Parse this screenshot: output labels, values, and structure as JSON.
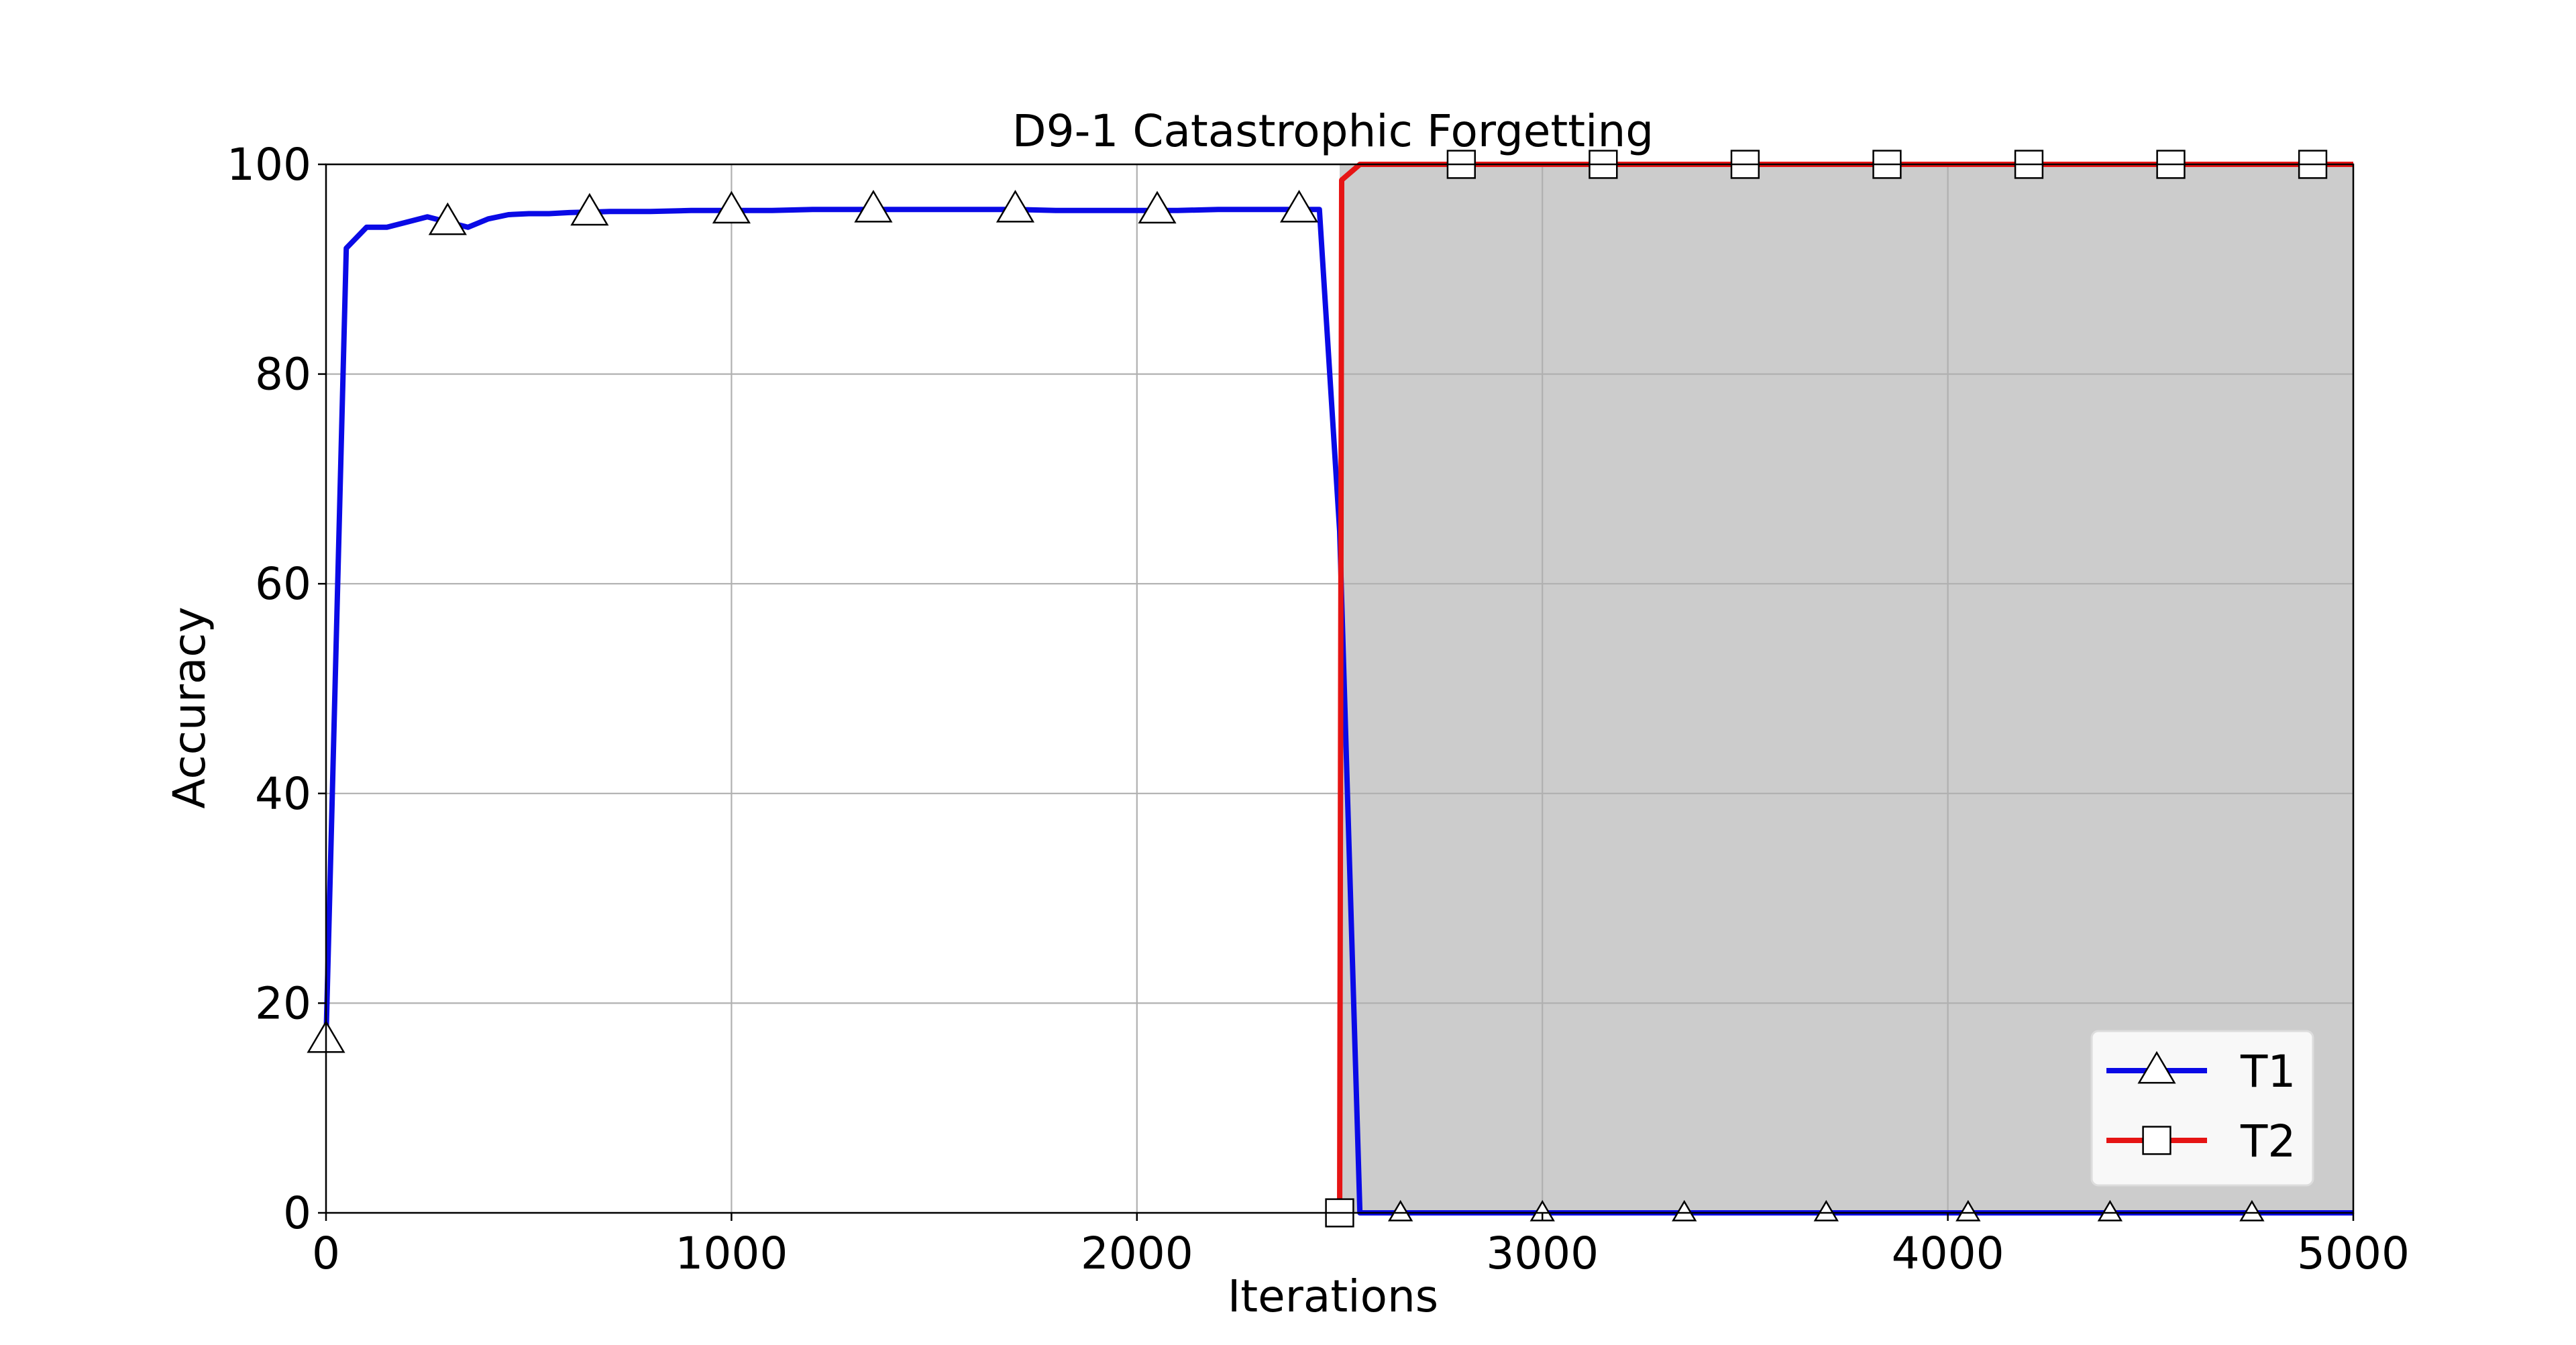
{
  "chart_data": {
    "type": "line",
    "title": "D9-1 Catastrophic Forgetting",
    "xlabel": "Iterations",
    "ylabel": "Accuracy",
    "xlim": [
      0,
      5000
    ],
    "ylim": [
      0,
      100
    ],
    "xticks": [
      0,
      1000,
      2000,
      3000,
      4000,
      5000
    ],
    "yticks": [
      0,
      20,
      40,
      60,
      80,
      100
    ],
    "grid": true,
    "legend_position": "lower-right",
    "shaded_region": {
      "x_start": 2500,
      "x_end": 5000,
      "color": "#cccccc"
    },
    "series": [
      {
        "name": "T1",
        "color": "#0a0ae6",
        "marker": "triangle",
        "x": [
          0,
          50,
          100,
          150,
          200,
          250,
          300,
          350,
          400,
          450,
          500,
          550,
          600,
          700,
          800,
          900,
          1000,
          1100,
          1200,
          1300,
          1400,
          1500,
          1600,
          1700,
          1800,
          1900,
          2000,
          2100,
          2200,
          2300,
          2400,
          2450,
          2500,
          2550,
          2600,
          2700,
          2800,
          2900,
          3000,
          3200,
          3400,
          3600,
          3800,
          4000,
          4200,
          4400,
          4600,
          4800,
          5000
        ],
        "y": [
          16.5,
          92,
          94,
          94,
          94.5,
          95,
          94.5,
          94,
          94.8,
          95.2,
          95.3,
          95.3,
          95.4,
          95.5,
          95.5,
          95.6,
          95.6,
          95.6,
          95.7,
          95.7,
          95.7,
          95.7,
          95.7,
          95.7,
          95.6,
          95.6,
          95.6,
          95.6,
          95.7,
          95.7,
          95.7,
          95.7,
          65,
          0,
          0,
          0,
          0,
          0,
          0,
          0,
          0,
          0,
          0,
          0,
          0,
          0,
          0,
          0,
          0
        ],
        "marker_x": [
          0,
          300,
          650,
          1000,
          1350,
          1700,
          2050,
          2400,
          2650,
          3000,
          3350,
          3700,
          4050,
          4400,
          4750
        ],
        "marker_y": [
          16.5,
          94.5,
          95.4,
          95.6,
          95.7,
          95.7,
          95.6,
          95.7,
          0,
          0,
          0,
          0,
          0,
          0,
          0
        ]
      },
      {
        "name": "T2",
        "color": "#e61414",
        "marker": "square",
        "x": [
          2500,
          2505,
          2550,
          2600,
          2700,
          2800,
          3000,
          3500,
          4000,
          4500,
          5000
        ],
        "y": [
          0,
          98.5,
          100,
          100,
          100,
          100,
          100,
          100,
          100,
          100,
          100
        ],
        "marker_x": [
          2500,
          2800,
          3150,
          3500,
          3850,
          4200,
          4550,
          4900
        ],
        "marker_y": [
          0,
          100,
          100,
          100,
          100,
          100,
          100,
          100
        ]
      }
    ]
  }
}
